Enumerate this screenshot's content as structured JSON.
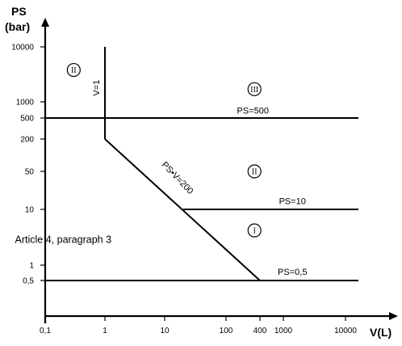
{
  "chart_data": {
    "type": "line",
    "title": "",
    "xlabel": "V(L)",
    "ylabel_line1": "PS",
    "ylabel_line2": "(bar)",
    "x_scale": "log",
    "y_scale": "log",
    "xlim": [
      0.1,
      20000
    ],
    "ylim": [
      0.2,
      20000
    ],
    "x_ticks": [
      {
        "value": 0.1,
        "label": "0,1"
      },
      {
        "value": 1,
        "label": "1"
      },
      {
        "value": 10,
        "label": "10"
      },
      {
        "value": 100,
        "label": "100"
      },
      {
        "value": 400,
        "label": "400"
      },
      {
        "value": 1000,
        "label": "1000"
      },
      {
        "value": 10000,
        "label": "10000"
      }
    ],
    "y_ticks": [
      {
        "value": 0.5,
        "label": "0,5"
      },
      {
        "value": 1,
        "label": "1"
      },
      {
        "value": 10,
        "label": "10"
      },
      {
        "value": 50,
        "label": "50"
      },
      {
        "value": 200,
        "label": "200"
      },
      {
        "value": 500,
        "label": "500"
      },
      {
        "value": 1000,
        "label": "1000"
      },
      {
        "value": 10000,
        "label": "10000"
      }
    ],
    "series": [
      {
        "name": "V=1",
        "points": [
          [
            1,
            10000
          ],
          [
            1,
            200
          ]
        ]
      },
      {
        "name": "PS=500",
        "points": [
          [
            0.1,
            500
          ],
          [
            20000,
            500
          ]
        ]
      },
      {
        "name": "PS•V=200",
        "points": [
          [
            1,
            200
          ],
          [
            400,
            0.5
          ]
        ]
      },
      {
        "name": "PS=10",
        "points": [
          [
            20,
            10
          ],
          [
            20000,
            10
          ]
        ]
      },
      {
        "name": "PS=0,5",
        "points": [
          [
            0.1,
            0.5
          ],
          [
            20000,
            0.5
          ]
        ]
      }
    ],
    "annotations": [
      {
        "text": "V=1",
        "x": 0.8,
        "y": 1800,
        "rotate": -90,
        "size": 11
      },
      {
        "text": "PS=500",
        "x": 300,
        "y": 610,
        "size": 11
      },
      {
        "text": "PS•V=200",
        "x": 15,
        "y": 35,
        "rotate": 46,
        "size": 11
      },
      {
        "text": "PS=10",
        "x": 1400,
        "y": 12.5,
        "size": 11
      },
      {
        "text": "PS=0,5",
        "x": 1400,
        "y": 0.65,
        "size": 11
      },
      {
        "text": "Article 4, paragraph 3",
        "x": 0.2,
        "y": 2.5,
        "size": 12.5
      }
    ],
    "regions": [
      {
        "label": "II",
        "x": 0.3,
        "y": 3800
      },
      {
        "label": "III",
        "x": 320,
        "y": 1700
      },
      {
        "label": "II",
        "x": 320,
        "y": 50
      },
      {
        "label": "I",
        "x": 320,
        "y": 4.2
      }
    ]
  }
}
